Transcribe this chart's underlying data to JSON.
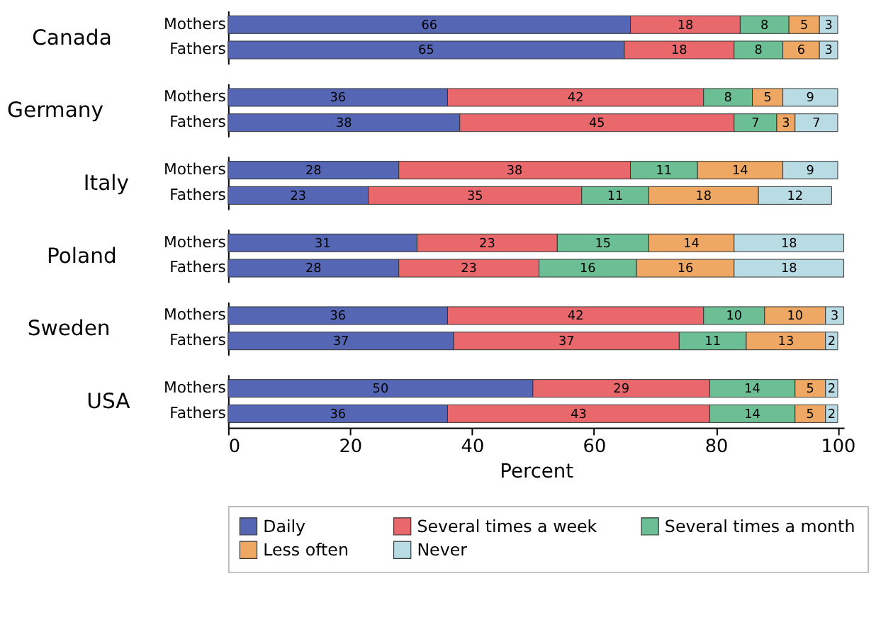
{
  "chart_data": [
    {
      "type": "bar",
      "orientation": "horizontal",
      "stacked": true,
      "title": "Canada",
      "categories": [
        "Mothers",
        "Fathers"
      ],
      "xticks": [
        0,
        20,
        40,
        60,
        80,
        100
      ],
      "tick_labels": "y",
      "data_labels": true,
      "grid": false,
      "legend": "bottom",
      "series": [
        {
          "name": "Daily",
          "color": "#5566b5",
          "values": [
            66,
            65
          ]
        },
        {
          "name": "Several times a week",
          "color": "#e8686c",
          "values": [
            18,
            18
          ]
        },
        {
          "name": "Several times a month",
          "color": "#6cbf94",
          "values": [
            8,
            8
          ]
        },
        {
          "name": "Less often",
          "color": "#eea863",
          "values": [
            5,
            6
          ]
        },
        {
          "name": "Never",
          "color": "#b8dbe4",
          "values": [
            3,
            3
          ]
        }
      ]
    },
    {
      "type": "bar",
      "orientation": "horizontal",
      "stacked": true,
      "title": "Germany",
      "categories": [
        "Mothers",
        "Fathers"
      ],
      "xticks": [
        0,
        20,
        40,
        60,
        80,
        100
      ],
      "tick_labels": "y",
      "data_labels": true,
      "grid": false,
      "legend": "bottom",
      "series": [
        {
          "name": "Daily",
          "color": "#5566b5",
          "values": [
            36,
            38
          ]
        },
        {
          "name": "Several times a week",
          "color": "#e8686c",
          "values": [
            42,
            45
          ]
        },
        {
          "name": "Several times a month",
          "color": "#6cbf94",
          "values": [
            8,
            7
          ]
        },
        {
          "name": "Less often",
          "color": "#eea863",
          "values": [
            5,
            3
          ]
        },
        {
          "name": "Never",
          "color": "#b8dbe4",
          "values": [
            9,
            7
          ]
        }
      ]
    },
    {
      "type": "bar",
      "orientation": "horizontal",
      "stacked": true,
      "title": "Italy",
      "categories": [
        "Mothers",
        "Fathers"
      ],
      "xticks": [
        0,
        20,
        40,
        60,
        80,
        100
      ],
      "tick_labels": "y",
      "data_labels": true,
      "grid": false,
      "legend": "bottom",
      "series": [
        {
          "name": "Daily",
          "color": "#5566b5",
          "values": [
            28,
            23
          ]
        },
        {
          "name": "Several times a week",
          "color": "#e8686c",
          "values": [
            38,
            35
          ]
        },
        {
          "name": "Several times a month",
          "color": "#6cbf94",
          "values": [
            11,
            11
          ]
        },
        {
          "name": "Less often",
          "color": "#eea863",
          "values": [
            14,
            18
          ]
        },
        {
          "name": "Never",
          "color": "#b8dbe4",
          "values": [
            9,
            12
          ]
        }
      ]
    },
    {
      "type": "bar",
      "orientation": "horizontal",
      "stacked": true,
      "title": "Poland",
      "categories": [
        "Mothers",
        "Fathers"
      ],
      "xlim": [
        0,
        101
      ],
      "xticks": [
        0,
        20,
        40,
        60,
        80,
        100
      ],
      "tick_labels": "y",
      "data_labels": true,
      "grid": false,
      "legend": "bottom",
      "series": [
        {
          "name": "Daily",
          "color": "#5566b5",
          "values": [
            31,
            28
          ]
        },
        {
          "name": "Several times a week",
          "color": "#e8686c",
          "values": [
            23,
            23
          ]
        },
        {
          "name": "Several times a month",
          "color": "#6cbf94",
          "values": [
            15,
            16
          ]
        },
        {
          "name": "Less often",
          "color": "#eea863",
          "values": [
            14,
            16
          ]
        },
        {
          "name": "Never",
          "color": "#b8dbe4",
          "values": [
            18,
            18
          ]
        }
      ]
    },
    {
      "type": "bar",
      "orientation": "horizontal",
      "stacked": true,
      "title": "Sweden",
      "categories": [
        "Mothers",
        "Fathers"
      ],
      "xlim": [
        0,
        101
      ],
      "xticks": [
        0,
        20,
        40,
        60,
        80,
        100
      ],
      "tick_labels": "y",
      "data_labels": true,
      "grid": false,
      "legend": "bottom",
      "series": [
        {
          "name": "Daily",
          "color": "#5566b5",
          "values": [
            36,
            37
          ]
        },
        {
          "name": "Several times a week",
          "color": "#e8686c",
          "values": [
            42,
            37
          ]
        },
        {
          "name": "Several times a month",
          "color": "#6cbf94",
          "values": [
            10,
            11
          ]
        },
        {
          "name": "Less often",
          "color": "#eea863",
          "values": [
            10,
            13
          ]
        },
        {
          "name": "Never",
          "color": "#b8dbe4",
          "values": [
            3,
            2
          ]
        }
      ]
    },
    {
      "type": "bar",
      "orientation": "horizontal",
      "stacked": true,
      "title": "USA",
      "categories": [
        "Mothers",
        "Fathers"
      ],
      "xlim": [
        0,
        101
      ],
      "xticks": [
        0,
        20,
        40,
        60,
        80,
        100
      ],
      "xlabel": "Percent",
      "data_labels": true,
      "grid": false,
      "legend": "bottom",
      "series": [
        {
          "name": "Daily",
          "color": "#5566b5",
          "values": [
            50,
            36
          ]
        },
        {
          "name": "Several times a week",
          "color": "#e8686c",
          "values": [
            29,
            43
          ]
        },
        {
          "name": "Several times a month",
          "color": "#6cbf94",
          "values": [
            14,
            14
          ]
        },
        {
          "name": "Less often",
          "color": "#eea863",
          "values": [
            5,
            5
          ]
        },
        {
          "name": "Never",
          "color": "#b8dbe4",
          "values": [
            2,
            2
          ]
        }
      ]
    }
  ]
}
